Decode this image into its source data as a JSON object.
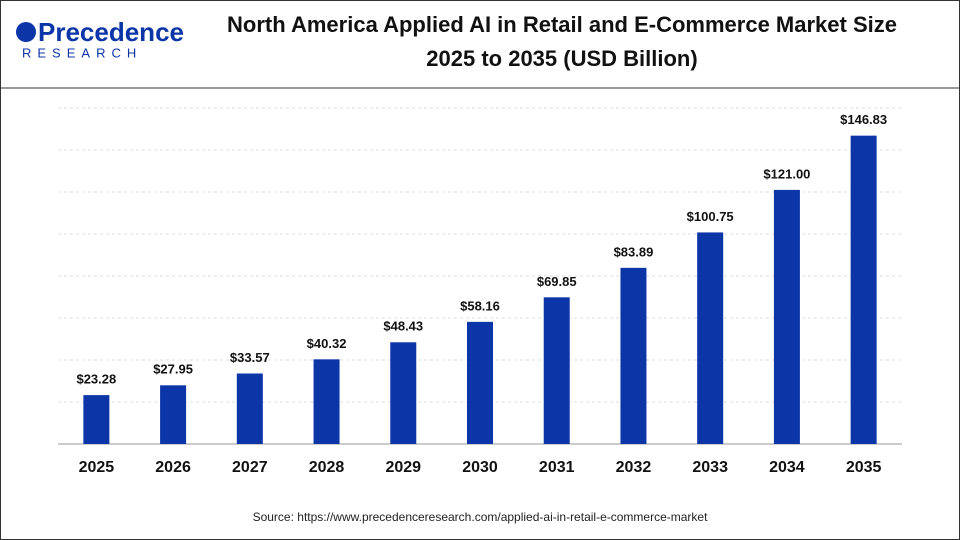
{
  "logo": {
    "name": "Precedence",
    "sub": "RESEARCH"
  },
  "chart_data": {
    "type": "bar",
    "title": [
      "North America Applied AI in Retail and E-Commerce Market Size",
      "2025 to 2035 (USD Billion)"
    ],
    "categories": [
      "2025",
      "2026",
      "2027",
      "2028",
      "2029",
      "2030",
      "2031",
      "2032",
      "2033",
      "2034",
      "2035"
    ],
    "values": [
      23.28,
      27.95,
      33.57,
      40.32,
      48.43,
      58.16,
      69.85,
      83.89,
      100.75,
      121.0,
      146.83
    ],
    "value_labels": [
      "$23.28",
      "$27.95",
      "$33.57",
      "$40.32",
      "$48.43",
      "$58.16",
      "$69.85",
      "$83.89",
      "$100.75",
      "$121.00",
      "$146.83"
    ],
    "color": "#0c35a8",
    "ylim": [
      0,
      160
    ],
    "yticks": [
      0,
      20,
      40,
      60,
      80,
      100,
      120,
      140,
      160
    ],
    "grid": true,
    "source": "Source: https://www.precedenceresearch.com/applied-ai-in-retail-e-commerce-market"
  }
}
